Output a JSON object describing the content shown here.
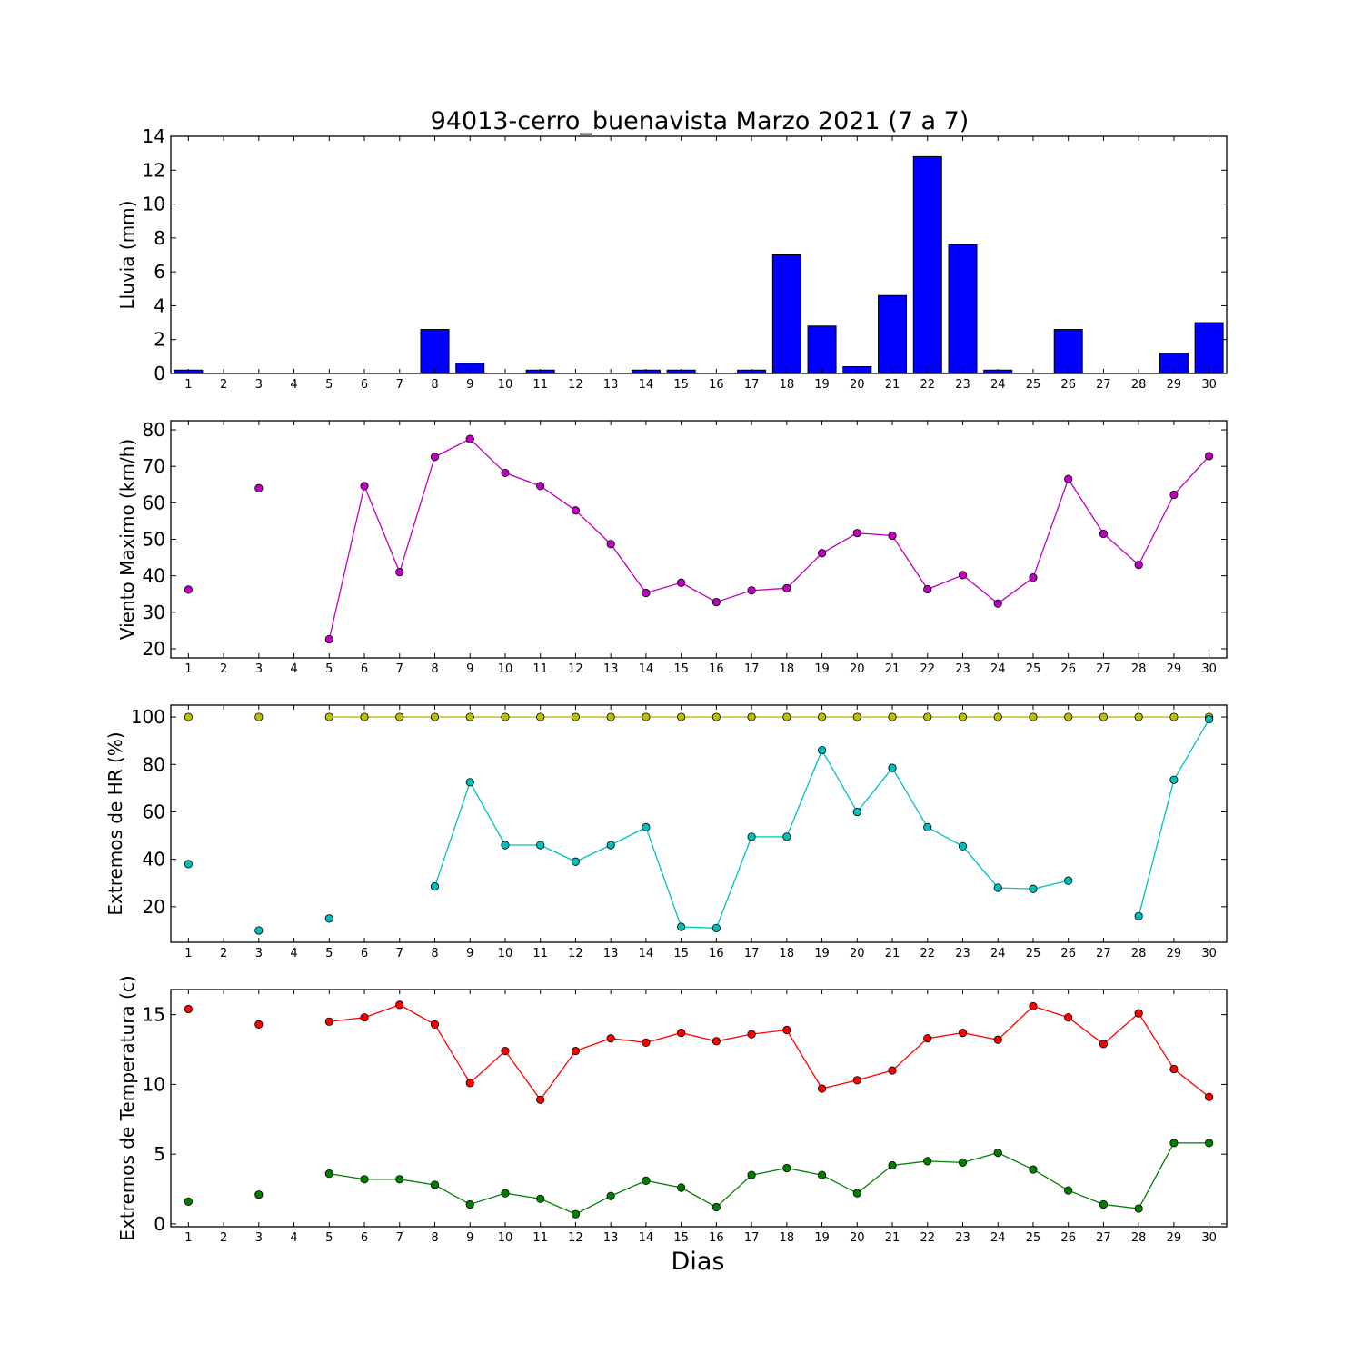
{
  "title": "94013-cerro_buenavista Marzo 2021  (7 a 7)",
  "xlabel": "Dias",
  "chart_data": [
    {
      "type": "bar",
      "ylabel": "Lluvia (mm)",
      "ylim": [
        0,
        14
      ],
      "yticks": [
        "0",
        "2",
        "4",
        "6",
        "8",
        "10",
        "12",
        "14"
      ],
      "x": [
        1,
        2,
        3,
        4,
        5,
        6,
        7,
        8,
        9,
        10,
        11,
        12,
        13,
        14,
        15,
        16,
        17,
        18,
        19,
        20,
        21,
        22,
        23,
        24,
        25,
        26,
        27,
        28,
        29,
        30
      ],
      "series": [
        {
          "color": "#0000ff",
          "values": [
            0.2,
            0,
            0,
            0,
            0,
            0,
            0,
            2.6,
            0.6,
            0,
            0.2,
            0,
            0,
            0.2,
            0.2,
            0,
            0.2,
            7.0,
            2.8,
            0.4,
            4.6,
            12.8,
            7.6,
            0.2,
            0,
            2.6,
            0,
            0,
            1.2,
            3.0
          ]
        }
      ],
      "grid": false
    },
    {
      "type": "line",
      "ylabel": "Viento Maximo (km/h)",
      "ylim": [
        17.5,
        82.5
      ],
      "yticks": [
        "20",
        "30",
        "40",
        "50",
        "60",
        "70",
        "80"
      ],
      "x": [
        1,
        2,
        3,
        4,
        5,
        6,
        7,
        8,
        9,
        10,
        11,
        12,
        13,
        14,
        15,
        16,
        17,
        18,
        19,
        20,
        21,
        22,
        23,
        24,
        25,
        26,
        27,
        28,
        29,
        30
      ],
      "series": [
        {
          "color": "#bf00bf",
          "values": [
            36.2,
            null,
            64.0,
            null,
            22.6,
            64.6,
            41.0,
            72.6,
            77.5,
            68.2,
            64.6,
            57.9,
            48.7,
            35.3,
            38.1,
            32.8,
            36.0,
            36.6,
            46.2,
            51.7,
            51.0,
            36.3,
            40.2,
            32.4,
            39.5,
            66.5,
            51.5,
            43.0,
            62.2,
            72.8
          ]
        }
      ],
      "grid": false
    },
    {
      "type": "line",
      "ylabel": "Extremos de HR (%)",
      "ylim": [
        5,
        105
      ],
      "yticks": [
        "20",
        "40",
        "60",
        "80",
        "100"
      ],
      "x": [
        1,
        2,
        3,
        4,
        5,
        6,
        7,
        8,
        9,
        10,
        11,
        12,
        13,
        14,
        15,
        16,
        17,
        18,
        19,
        20,
        21,
        22,
        23,
        24,
        25,
        26,
        27,
        28,
        29,
        30
      ],
      "series": [
        {
          "color": "#bfbf00",
          "values": [
            100,
            null,
            100,
            null,
            100,
            100,
            100,
            100,
            100,
            100,
            100,
            100,
            100,
            100,
            100,
            100,
            100,
            100,
            100,
            100,
            100,
            100,
            100,
            100,
            100,
            100,
            100,
            100,
            100,
            100
          ]
        },
        {
          "color": "#00bfbf",
          "values": [
            38,
            null,
            10,
            null,
            15,
            null,
            null,
            28.5,
            72.5,
            46,
            46,
            39,
            46,
            53.5,
            11.5,
            11,
            49.5,
            49.5,
            86,
            60,
            78.5,
            53.5,
            45.5,
            28,
            27.5,
            31,
            null,
            16,
            73.5,
            99
          ]
        }
      ],
      "grid": false
    },
    {
      "type": "line",
      "ylabel": "Extremos de Temperatura (c)",
      "ylim": [
        -0.2,
        16.8
      ],
      "yticks": [
        "0",
        "5",
        "10",
        "15"
      ],
      "x": [
        1,
        2,
        3,
        4,
        5,
        6,
        7,
        8,
        9,
        10,
        11,
        12,
        13,
        14,
        15,
        16,
        17,
        18,
        19,
        20,
        21,
        22,
        23,
        24,
        25,
        26,
        27,
        28,
        29,
        30
      ],
      "series": [
        {
          "color": "#ff0000",
          "values": [
            15.4,
            null,
            14.3,
            null,
            14.5,
            14.8,
            15.7,
            14.3,
            10.1,
            12.4,
            8.9,
            12.4,
            13.3,
            13.0,
            13.7,
            13.1,
            13.6,
            13.9,
            9.7,
            10.3,
            11.0,
            13.3,
            13.7,
            13.2,
            15.6,
            14.8,
            12.9,
            15.1,
            11.1,
            9.1
          ]
        },
        {
          "color": "#007f00",
          "values": [
            1.6,
            null,
            2.1,
            null,
            3.6,
            3.2,
            3.2,
            2.8,
            1.4,
            2.2,
            1.8,
            0.7,
            2.0,
            3.1,
            2.6,
            1.2,
            3.5,
            4.0,
            3.5,
            2.2,
            4.2,
            4.5,
            4.4,
            5.1,
            3.9,
            2.4,
            1.4,
            1.1,
            5.8,
            5.8
          ]
        }
      ],
      "grid": false
    }
  ]
}
